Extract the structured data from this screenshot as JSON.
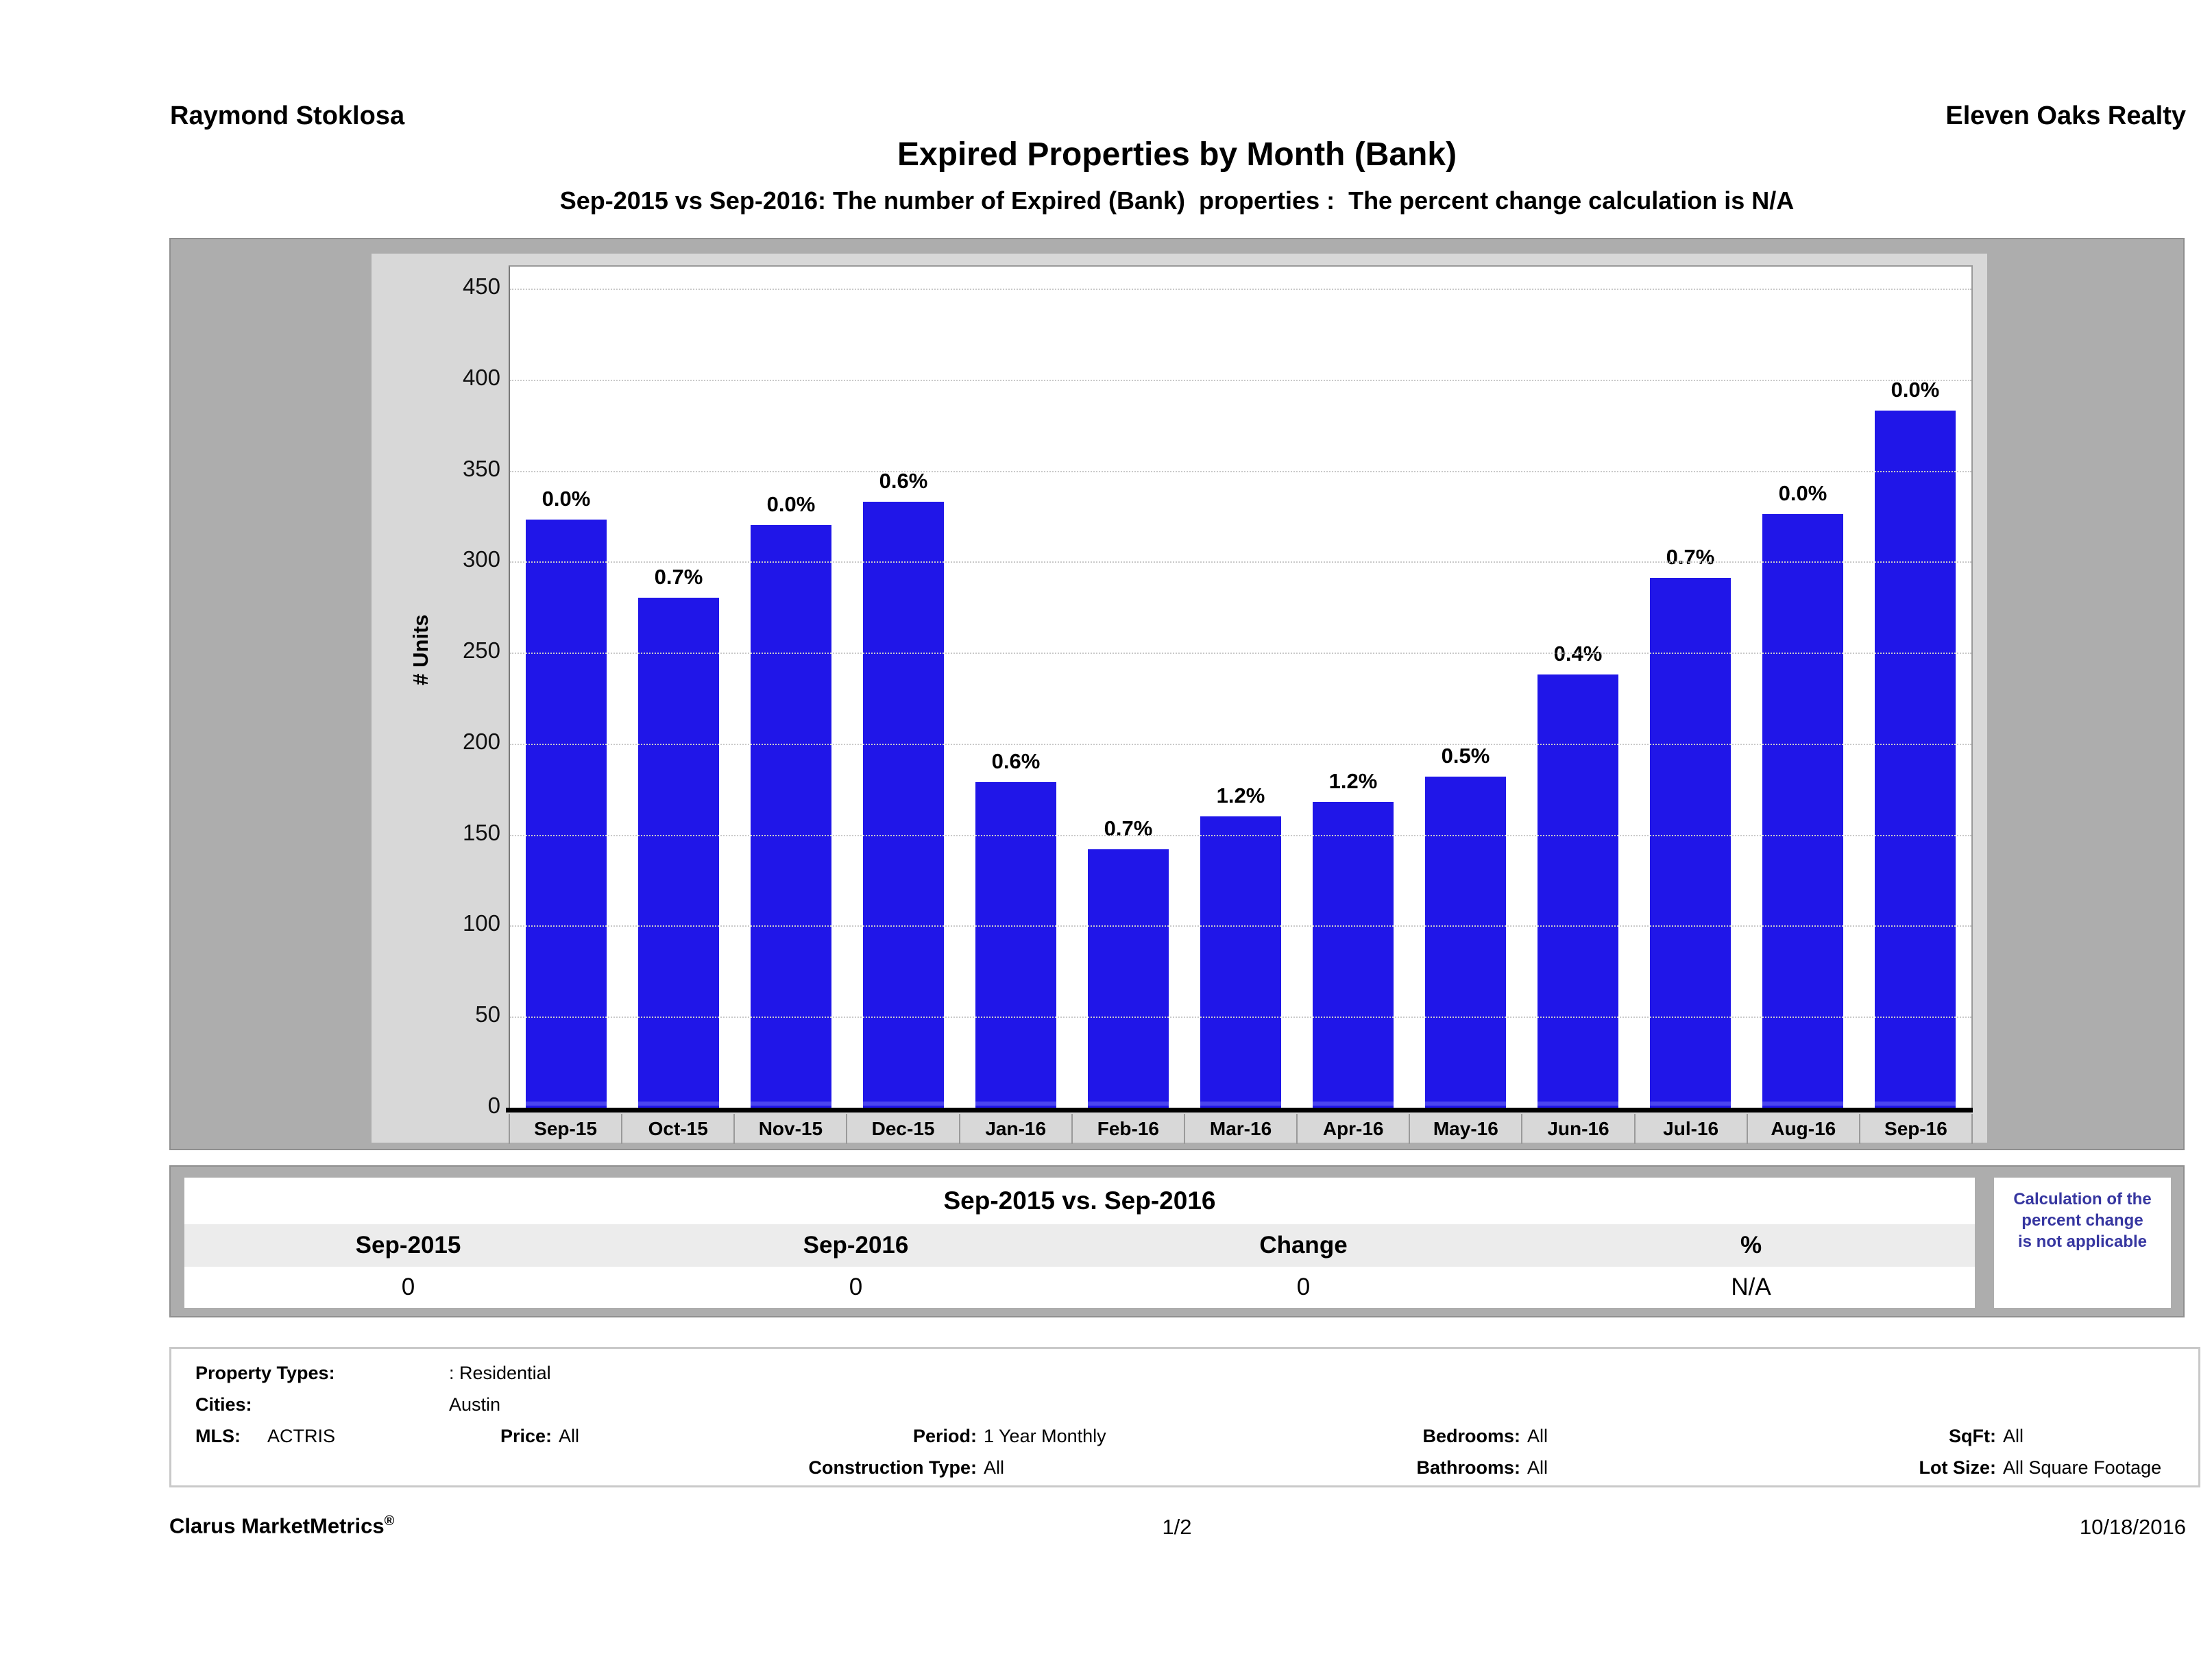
{
  "header": {
    "left": "Raymond Stoklosa",
    "right": "Eleven Oaks Realty",
    "title": "Expired Properties by Month (Bank)",
    "subtitle": "Sep-2015 vs Sep-2016: The number of Expired (Bank)  properties :  The percent change calculation is N/A"
  },
  "chart_data": {
    "type": "bar",
    "title": "Expired Properties by Month (Bank)",
    "xlabel": "",
    "ylabel": "# Units",
    "categories": [
      "Sep-15",
      "Oct-15",
      "Nov-15",
      "Dec-15",
      "Jan-16",
      "Feb-16",
      "Mar-16",
      "Apr-16",
      "May-16",
      "Jun-16",
      "Jul-16",
      "Aug-16",
      "Sep-16"
    ],
    "values": [
      323,
      280,
      320,
      333,
      179,
      142,
      160,
      168,
      182,
      238,
      291,
      326,
      383
    ],
    "bar_labels": [
      "0.0%",
      "0.7%",
      "0.0%",
      "0.6%",
      "0.6%",
      "0.7%",
      "1.2%",
      "1.2%",
      "0.5%",
      "0.4%",
      "0.7%",
      "0.0%",
      "0.0%"
    ],
    "ylim": [
      0,
      450
    ],
    "ytick_step": 50,
    "grid": "horizontal-dotted",
    "legend": "none",
    "bar_color": "#2016e8"
  },
  "summary": {
    "title": "Sep-2015 vs. Sep-2016",
    "columns": [
      "Sep-2015",
      "Sep-2016",
      "Change",
      "%"
    ],
    "values": [
      "0",
      "0",
      "0",
      "N/A"
    ],
    "note_line1": "Calculation of the",
    "note_line2": "percent change",
    "note_line3": "is not applicable",
    "note_color": "#3636a0"
  },
  "filters": {
    "property_types_label": "Property Types:",
    "property_types_value": ": Residential",
    "cities_label": "Cities:",
    "cities_value": "Austin",
    "mls_label": "MLS:",
    "mls_value": "ACTRIS",
    "price_label": "Price:",
    "price_value": "All",
    "period_label": "Period:",
    "period_value": "1 Year Monthly",
    "construction_label": "Construction Type:",
    "construction_value": "All",
    "bedrooms_label": "Bedrooms:",
    "bedrooms_value": "All",
    "bathrooms_label": "Bathrooms:",
    "bathrooms_value": "All",
    "sqft_label": "SqFt:",
    "sqft_value": "All",
    "lot_label": "Lot Size:",
    "lot_value": "All Square Footage"
  },
  "footer": {
    "brand": "Clarus MarketMetrics",
    "brand_reg": "®",
    "page": "1/2",
    "date": "10/18/2016"
  }
}
